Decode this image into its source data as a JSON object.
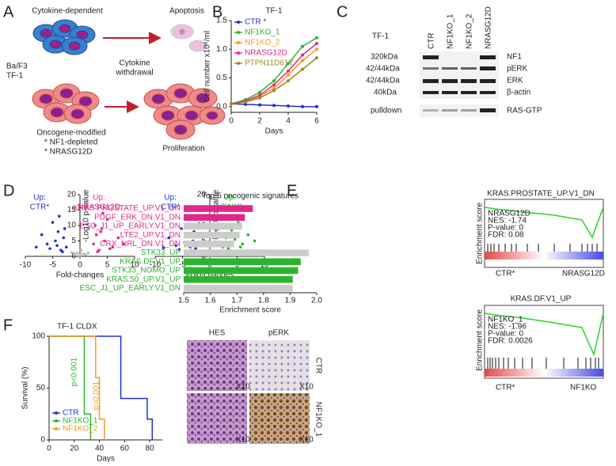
{
  "panel_labels": [
    "A",
    "B",
    "C",
    "D",
    "E",
    "F"
  ],
  "diagram_a": {
    "top_left": "Cytokine-dependent",
    "top_right": "Apoptosis",
    "cell_lines": [
      "Ba/F3",
      "TF-1"
    ],
    "arrow_label": [
      "Cytokine",
      "withdrawal"
    ],
    "bottom_left": "Oncogene-modified",
    "bottom_items": [
      "* NF1-depleted",
      "* NRASG12D"
    ],
    "bottom_right": "Proliferation"
  },
  "blot_c": {
    "title": "TF-1",
    "lanes": [
      "CTR",
      "NF1KO_1",
      "NF1KO_2",
      "NRASG12D"
    ],
    "sizes": [
      "320kDa",
      "42/44kDa",
      "42/44kDa",
      "40kDa",
      "pulldown"
    ],
    "proteins": [
      "NF1",
      "pERK",
      "ERK",
      "β-actin",
      "RAS-GTP"
    ]
  },
  "gsea": [
    {
      "title": "KRAS.PROSTATE_UP.V1_DN",
      "label": "NRASG12D",
      "stats": [
        "NES: -1.74",
        "P-value: 0",
        "FDR: 0.08"
      ],
      "ylabel": "Enrichment score",
      "left": "CTR*",
      "right": "NRASG12D"
    },
    {
      "title": "KRAS.DF.V1_UP",
      "label": "NF1KO_1",
      "stats": [
        "NES: -1.96",
        "P-value: 0",
        "FDR: 0.0026"
      ],
      "ylabel": "Enrichment score",
      "left": "CTR*",
      "right": "NF1KO"
    }
  ],
  "histology": {
    "columns": [
      "HES",
      "pERK"
    ],
    "rows": [
      "CTR",
      "NF1KO_1"
    ],
    "magnification": "X10"
  },
  "chart_data": [
    {
      "type": "line",
      "title": "TF-1",
      "xlabel": "Days",
      "ylabel": "Cell number x10⁶/ml",
      "x": [
        0,
        1,
        2,
        3,
        4,
        5,
        6
      ],
      "xlim": [
        0,
        6
      ],
      "xticks": [
        0,
        2,
        4,
        6
      ],
      "ylim": [
        -0.1,
        1.5
      ],
      "yticks": [
        {
          "value": 0,
          "label": "0.0"
        },
        0.5,
        {
          "value": 1,
          "label": "1.0"
        },
        1.5
      ],
      "series": [
        {
          "name": "CTR *",
          "color": "#1f2fd8",
          "values": [
            0.05,
            0.04,
            0.03,
            0.02,
            0.01,
            0.0,
            0.0
          ]
        },
        {
          "name": "NF1KO_1",
          "color": "#2bb52b",
          "values": [
            0.05,
            0.12,
            0.25,
            0.45,
            0.75,
            1.05,
            1.2
          ]
        },
        {
          "name": "NF1KO_2",
          "color": "#f39b21",
          "values": [
            0.05,
            0.08,
            0.18,
            0.32,
            0.55,
            0.8,
            1.0
          ]
        },
        {
          "name": "NRASG12D",
          "color": "#e0288a",
          "values": [
            0.05,
            0.1,
            0.2,
            0.38,
            0.62,
            0.9,
            1.1
          ]
        },
        {
          "name": "PTPN11D61Y",
          "color": "#9c8a2c",
          "values": [
            0.05,
            0.08,
            0.15,
            0.28,
            0.45,
            0.65,
            0.85
          ]
        }
      ]
    },
    {
      "type": "scatter",
      "xlabel": "Fold-changes",
      "ylabel": "-Log10 p-value",
      "xlim": [
        -10,
        10
      ],
      "xticks": [
        -10,
        -5,
        0,
        5,
        10
      ],
      "ylim": [
        0,
        20
      ],
      "yticks": [
        0,
        5,
        10,
        15,
        20
      ],
      "annotations": [
        "Up:",
        "CTR*",
        "Up:",
        "NRASG12D"
      ],
      "series": [
        {
          "color": "#1f2fd8",
          "x": [
            -2.5,
            -3,
            -3.5,
            -4,
            -4.5,
            -5,
            -6,
            -7,
            -3.2,
            -4.2,
            -2.8,
            -5.5,
            -8,
            -3.8
          ],
          "values": [
            3,
            6,
            2,
            8,
            5,
            11,
            4,
            7,
            1.5,
            3.5,
            9,
            2.5,
            3,
            13
          ]
        },
        {
          "color": "#e0288a",
          "x": [
            2.5,
            3,
            3.5,
            4,
            4.5,
            5,
            6,
            7,
            3.2,
            4.2,
            2.8,
            5.5,
            8,
            3.8
          ],
          "values": [
            4,
            7,
            2,
            9,
            5,
            12,
            3,
            6,
            1.5,
            14,
            10,
            2.5,
            4,
            8
          ]
        },
        {
          "color": "#bbbbbb",
          "x": [
            -1,
            -0.5,
            0,
            0.5,
            1,
            -1.5,
            1.5,
            0.2
          ],
          "values": [
            0.5,
            1,
            0.3,
            0.8,
            0.6,
            1.2,
            1.1,
            2
          ]
        }
      ]
    },
    {
      "type": "scatter",
      "xlabel": "Fold-changes",
      "ylabel": "-Log10 p-value",
      "xlim": [
        -10,
        10
      ],
      "xticks": [
        -10,
        -5,
        0,
        5,
        10
      ],
      "ylim": [
        0,
        20
      ],
      "yticks": [
        0,
        5,
        10,
        15,
        20
      ],
      "annotations": [
        "Up:",
        "CTR*",
        "Up:",
        "NF1KO"
      ],
      "series": [
        {
          "color": "#1f2fd8",
          "x": [
            -2.6,
            -3.1,
            -3.6,
            -4.1,
            -4.6,
            -5.2,
            -6.2,
            -7.5,
            -3.3,
            -4.4,
            -2.9,
            -5.6,
            -8.5,
            -3.9
          ],
          "values": [
            2.5,
            5,
            3,
            7,
            4.5,
            9,
            3.5,
            6,
            1.8,
            10,
            8,
            2.2,
            2.8,
            12
          ]
        },
        {
          "color": "#2bb52b",
          "x": [
            2.4,
            3,
            3.4,
            4,
            4.6,
            5.2,
            6,
            7,
            3.3,
            4.3,
            2.9,
            5.6,
            8.2,
            3.7
          ],
          "values": [
            3,
            6,
            2.5,
            8.5,
            5.5,
            11,
            4,
            7,
            1.6,
            13,
            9.5,
            3,
            5,
            15
          ]
        },
        {
          "color": "#bbbbbb",
          "x": [
            -1.2,
            -0.4,
            0,
            0.6,
            1.1,
            -1.6,
            1.4,
            0.3
          ],
          "values": [
            0.6,
            1.1,
            0.3,
            0.7,
            0.5,
            1.3,
            1.2,
            1.8
          ]
        }
      ]
    },
    {
      "type": "bar",
      "orientation": "horizontal",
      "title": "Top-5 oncogenic signatures",
      "xlabel": "Enrichment score",
      "categories": [
        "KRAS PROSTATE_UP.V1_DN",
        "PDGF_ERK_DN.V1_DN",
        "ESC_J1_UP_EARLY.V1_DN",
        "LTE2_UP.V1_DN",
        "CRX_NRL_DN.V1_DN",
        "STK33_UP",
        "KRAS.DF.V1_UP",
        "STK33_NOMO_UP",
        "KRAS.50_UP.V1_UP",
        "ESC_J1_UP_EARLY.V1_DN"
      ],
      "values": [
        1.76,
        1.73,
        1.72,
        1.71,
        1.69,
        1.97,
        1.94,
        1.93,
        1.91,
        1.91
      ],
      "colors": [
        "#e0288a",
        "#e0288a",
        "#cccccc",
        "#cccccc",
        "#cccccc",
        "#cccccc",
        "#2bb52b",
        "#2bb52b",
        "#2bb52b",
        "#cccccc"
      ],
      "label_colors": [
        "#e0288a",
        "#e0288a",
        "#e0288a",
        "#e0288a",
        "#e0288a",
        "#2bb52b",
        "#2bb52b",
        "#2bb52b",
        "#2bb52b",
        "#2bb52b"
      ],
      "xlim": [
        1.5,
        2.0
      ],
      "xticks": [
        1.5,
        1.6,
        1.7,
        1.8,
        1.9,
        {
          "value": 2,
          "label": "2.0"
        }
      ]
    },
    {
      "type": "step",
      "title": "TF-1 CLDX",
      "xlabel": "Days",
      "ylabel": "Survival (%)",
      "xlim": [
        0,
        90
      ],
      "xticks": [
        0,
        20,
        40,
        60,
        80
      ],
      "ylim": [
        0,
        100
      ],
      "yticks": [
        0,
        50,
        100
      ],
      "annotations": [
        "p<0.001",
        "p=0.001"
      ],
      "series": [
        {
          "name": "CTR",
          "color": "#1f2fd8",
          "x": [
            0,
            57,
            65,
            78,
            82
          ],
          "values": [
            100,
            40,
            40,
            20,
            0
          ]
        },
        {
          "name": "NF1KO_1",
          "color": "#2bb52b",
          "x": [
            0,
            28,
            33
          ],
          "values": [
            100,
            25,
            0
          ]
        },
        {
          "name": "NF1KO_2",
          "color": "#f39b21",
          "x": [
            0,
            37,
            40,
            44
          ],
          "values": [
            100,
            60,
            20,
            0
          ]
        }
      ]
    }
  ]
}
